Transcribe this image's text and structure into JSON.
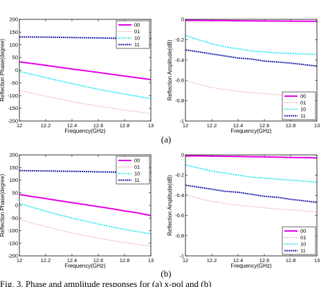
{
  "panel_labels": [
    "(a)",
    "(b)"
  ],
  "caption_fragment": "Fig. 3.  Phase and amplitude responses for (a) x-pol and (b)",
  "colors": {
    "00": "#e600e6",
    "01": "#f08080",
    "10": "#00e5ee",
    "11": "#1a1aa6"
  },
  "chart_data": [
    {
      "type": "line",
      "panel": "a-left",
      "xlabel": "Frequency(GHz)",
      "ylabel": "Reflection Phase(degree)",
      "xlim": [
        12,
        13
      ],
      "ylim": [
        -200,
        200
      ],
      "xticks": [
        12,
        12.2,
        12.4,
        12.6,
        12.8,
        13
      ],
      "xticklabels": [
        "12",
        "12.2",
        "12.4",
        "12.6",
        "12.8",
        "13"
      ],
      "yticks": [
        -200,
        -150,
        -100,
        -50,
        0,
        50,
        100,
        150,
        200
      ],
      "yticklabels": [
        "-200",
        "-150",
        "-100",
        "-50",
        "0",
        "50",
        "100",
        "150",
        "200"
      ],
      "legend": "top-right",
      "x": [
        12,
        12.1,
        12.2,
        12.3,
        12.4,
        12.5,
        12.6,
        12.7,
        12.8,
        12.9,
        13
      ],
      "series": [
        {
          "name": "00",
          "values": [
            33,
            26,
            19,
            12,
            5,
            -2,
            -9,
            -16,
            -23,
            -30,
            -37
          ]
        },
        {
          "name": "01",
          "values": [
            -80,
            -91,
            -102,
            -113,
            -123,
            -133,
            -141,
            -149,
            -157,
            -164,
            -170
          ]
        },
        {
          "name": "10",
          "values": [
            -5,
            -17,
            -29,
            -41,
            -53,
            -64,
            -75,
            -85,
            -94,
            -103,
            -112
          ]
        },
        {
          "name": "11",
          "values": [
            131,
            130.5,
            130,
            129.5,
            128.5,
            127.5,
            127,
            126,
            125,
            124.5,
            124
          ]
        }
      ]
    },
    {
      "type": "line",
      "panel": "a-right",
      "xlabel": "Frequency(GHz)",
      "ylabel": "Reflection Amplitude(dB)",
      "xlim": [
        12,
        13
      ],
      "ylim": [
        -1,
        0
      ],
      "xticks": [
        12,
        12.2,
        12.4,
        12.6,
        12.8,
        13
      ],
      "xticklabels": [
        "12",
        "12.2",
        "12.4",
        "12.6",
        "12.8",
        "13"
      ],
      "yticks": [
        -1,
        -0.8,
        -0.6,
        -0.4,
        -0.2,
        0
      ],
      "yticklabels": [
        "-1",
        "-0.8",
        "-0.6",
        "-0.4",
        "-0.2",
        "0"
      ],
      "legend": "bottom-right",
      "x": [
        12,
        12.1,
        12.2,
        12.3,
        12.4,
        12.5,
        12.6,
        12.7,
        12.8,
        12.9,
        13
      ],
      "series": [
        {
          "name": "00",
          "values": [
            -0.01,
            -0.01,
            -0.012,
            -0.012,
            -0.014,
            -0.015,
            -0.016,
            -0.017,
            -0.018,
            -0.019,
            -0.02
          ]
        },
        {
          "name": "01",
          "values": [
            -0.6,
            -0.64,
            -0.67,
            -0.69,
            -0.71,
            -0.72,
            -0.73,
            -0.74,
            -0.75,
            -0.755,
            -0.76
          ]
        },
        {
          "name": "10",
          "values": [
            -0.16,
            -0.2,
            -0.24,
            -0.27,
            -0.29,
            -0.31,
            -0.32,
            -0.33,
            -0.335,
            -0.34,
            -0.345
          ]
        },
        {
          "name": "11",
          "values": [
            -0.3,
            -0.32,
            -0.34,
            -0.36,
            -0.38,
            -0.39,
            -0.41,
            -0.42,
            -0.43,
            -0.445,
            -0.46
          ]
        }
      ]
    },
    {
      "type": "line",
      "panel": "b-left",
      "xlabel": "Frequency(GHz)",
      "ylabel": "Reflection Phase(degree)",
      "xlim": [
        12,
        13
      ],
      "ylim": [
        -200,
        200
      ],
      "xticks": [
        12,
        12.2,
        12.4,
        12.6,
        12.8,
        13
      ],
      "xticklabels": [
        "12",
        "12.2",
        "12.4",
        "12.6",
        "12.8",
        "13"
      ],
      "yticks": [
        -200,
        -150,
        -100,
        -50,
        0,
        50,
        100,
        150,
        200
      ],
      "yticklabels": [
        "-200",
        "-150",
        "-100",
        "-50",
        "0",
        "50",
        "100",
        "150",
        "200"
      ],
      "legend": "top-right",
      "x": [
        12,
        12.1,
        12.2,
        12.3,
        12.4,
        12.5,
        12.6,
        12.7,
        12.8,
        12.9,
        13
      ],
      "series": [
        {
          "name": "00",
          "values": [
            43,
            35,
            27,
            19,
            11,
            3,
            -5,
            -13,
            -22,
            -30,
            -40
          ]
        },
        {
          "name": "01",
          "values": [
            -55,
            -70,
            -84,
            -97,
            -109,
            -120,
            -130,
            -139,
            -147,
            -155,
            -162
          ]
        },
        {
          "name": "10",
          "values": [
            7,
            -8,
            -23,
            -37,
            -50,
            -62,
            -74,
            -85,
            -95,
            -104,
            -113
          ]
        },
        {
          "name": "11",
          "values": [
            138,
            137,
            136.5,
            135.5,
            135,
            134,
            133,
            132,
            131,
            130.5,
            130
          ]
        }
      ]
    },
    {
      "type": "line",
      "panel": "b-right",
      "xlabel": "Frequency(GHz)",
      "ylabel": "Reflection Amplitude(dB)",
      "xlim": [
        12,
        13
      ],
      "ylim": [
        -1,
        0
      ],
      "xticks": [
        12,
        12.2,
        12.4,
        12.6,
        12.8,
        13
      ],
      "xticklabels": [
        "12",
        "12.2",
        "12.4",
        "12.6",
        "12.8",
        "13"
      ],
      "yticks": [
        -1,
        -0.8,
        -0.6,
        -0.4,
        -0.2,
        0
      ],
      "yticklabels": [
        "-1",
        "-0.8",
        "-0.6",
        "-0.4",
        "-0.2",
        "0"
      ],
      "legend": "bottom-right",
      "x": [
        12,
        12.1,
        12.2,
        12.3,
        12.4,
        12.5,
        12.6,
        12.7,
        12.8,
        12.9,
        13
      ],
      "series": [
        {
          "name": "00",
          "values": [
            -0.01,
            -0.01,
            -0.012,
            -0.014,
            -0.016,
            -0.018,
            -0.02,
            -0.022,
            -0.025,
            -0.027,
            -0.03
          ]
        },
        {
          "name": "01",
          "values": [
            -0.39,
            -0.43,
            -0.46,
            -0.48,
            -0.5,
            -0.51,
            -0.525,
            -0.535,
            -0.545,
            -0.555,
            -0.565
          ]
        },
        {
          "name": "10",
          "values": [
            -0.1,
            -0.13,
            -0.16,
            -0.18,
            -0.2,
            -0.22,
            -0.23,
            -0.24,
            -0.25,
            -0.26,
            -0.27
          ]
        },
        {
          "name": "11",
          "values": [
            -0.3,
            -0.32,
            -0.34,
            -0.36,
            -0.37,
            -0.39,
            -0.41,
            -0.42,
            -0.44,
            -0.455,
            -0.47
          ]
        }
      ]
    }
  ]
}
